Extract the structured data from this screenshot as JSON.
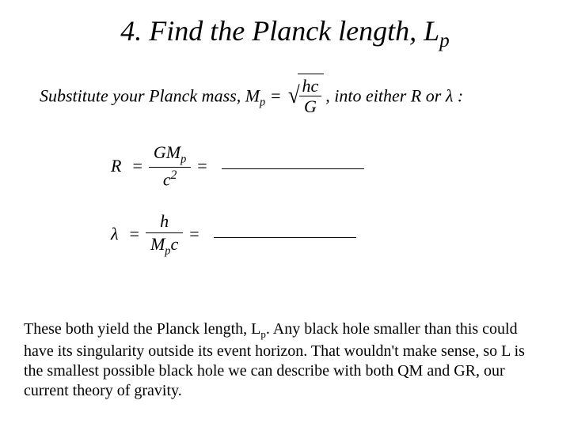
{
  "title_prefix": "4. Find the Planck length, L",
  "title_sub": "p",
  "intro_a": "Substitute your Planck mass",
  "intro_comma1": ", ",
  "intro_M": "M",
  "intro_Msub": "p",
  "intro_eq": " = ",
  "sqrt_num": "hc",
  "sqrt_den": "G",
  "intro_b": ", into either R or ",
  "intro_lambda": "λ",
  "intro_colon": " :",
  "eq1_lhs": "R",
  "eq1_num_a": "GM",
  "eq1_num_sub": "p",
  "eq1_den_a": "c",
  "eq1_den_sup": "2",
  "eq2_lhs": "λ",
  "eq2_num": "h",
  "eq2_den_a": "M",
  "eq2_den_sub": "p",
  "eq2_den_b": "c",
  "equals": "=",
  "body_a": "These both yield the Planck length, L",
  "body_sub": "p",
  "body_b": ".  Any black hole smaller than this could have its singularity outside its event horizon.  That wouldn't make sense, so L is the smallest possible black hole we can describe with both QM and GR, our current theory of gravity."
}
